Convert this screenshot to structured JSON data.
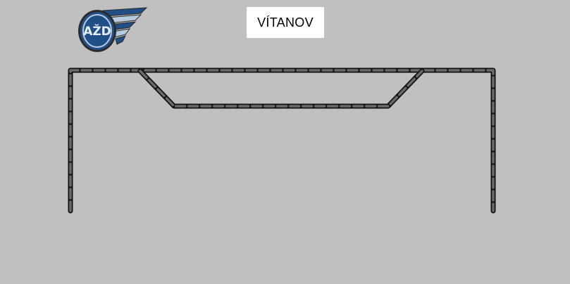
{
  "station": {
    "name": "VÍTANOV"
  },
  "logo": {
    "text": "AŽD"
  },
  "colors": {
    "background": "#c0c0c0",
    "track_outer": "#111111",
    "track_dash": "#6a6a6a",
    "label_background": "#ffffff",
    "logo_blue": "#1f4f86",
    "logo_light": "#b7cbe0"
  }
}
